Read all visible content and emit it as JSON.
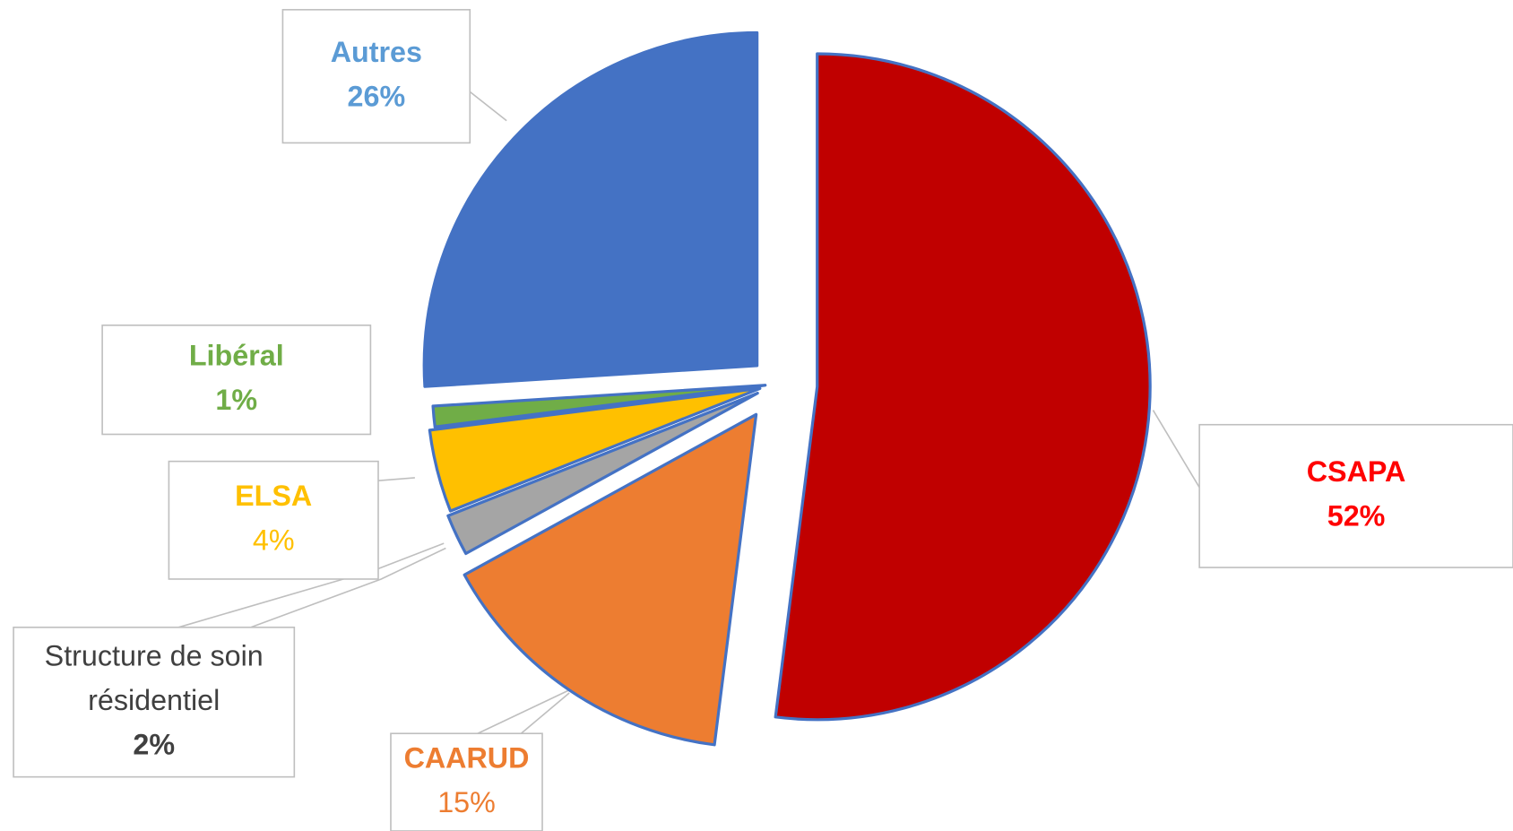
{
  "chart_data": {
    "type": "pie",
    "categories": [
      "CSAPA",
      "CAARUD",
      "Structure de soin résidentiel",
      "ELSA",
      "Libéral",
      "Autres"
    ],
    "values": [
      52,
      15,
      2,
      4,
      1,
      26
    ],
    "value_labels": [
      "52%",
      "15%",
      "2%",
      "4%",
      "1%",
      "26%"
    ],
    "colors": [
      "#c00000",
      "#ed7d31",
      "#a5a5a5",
      "#ffc000",
      "#70ad47",
      "#4472c4"
    ],
    "label_colors": [
      "#ff0000",
      "#ed7d31",
      "#404040",
      "#ffc000",
      "#70ad47",
      "#5b9bd5"
    ]
  }
}
